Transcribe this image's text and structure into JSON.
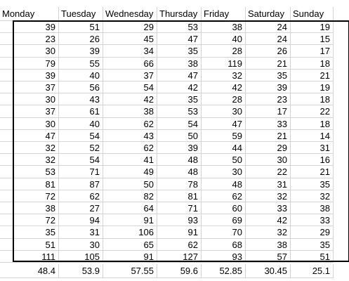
{
  "sheet": {
    "headers": [
      "Monday",
      "Tuesday",
      "Wednesday",
      "Thursday",
      "Friday",
      "Saturday",
      "Sunday"
    ],
    "rows": [
      [
        "39",
        "51",
        "29",
        "53",
        "38",
        "24",
        "19"
      ],
      [
        "23",
        "26",
        "45",
        "47",
        "40",
        "24",
        "15"
      ],
      [
        "30",
        "39",
        "34",
        "35",
        "28",
        "26",
        "17"
      ],
      [
        "79",
        "55",
        "66",
        "38",
        "119",
        "21",
        "18"
      ],
      [
        "39",
        "40",
        "37",
        "47",
        "32",
        "35",
        "21"
      ],
      [
        "37",
        "56",
        "54",
        "42",
        "42",
        "39",
        "19"
      ],
      [
        "30",
        "43",
        "42",
        "35",
        "28",
        "23",
        "18"
      ],
      [
        "37",
        "61",
        "38",
        "53",
        "30",
        "17",
        "22"
      ],
      [
        "30",
        "40",
        "62",
        "54",
        "47",
        "33",
        "18"
      ],
      [
        "47",
        "54",
        "43",
        "50",
        "59",
        "21",
        "14"
      ],
      [
        "32",
        "52",
        "62",
        "39",
        "44",
        "29",
        "31"
      ],
      [
        "32",
        "54",
        "41",
        "48",
        "50",
        "30",
        "16"
      ],
      [
        "53",
        "71",
        "49",
        "48",
        "30",
        "22",
        "21"
      ],
      [
        "81",
        "87",
        "50",
        "78",
        "48",
        "31",
        "35"
      ],
      [
        "72",
        "62",
        "82",
        "81",
        "62",
        "32",
        "32"
      ],
      [
        "38",
        "27",
        "64",
        "71",
        "60",
        "33",
        "38"
      ],
      [
        "72",
        "94",
        "91",
        "93",
        "69",
        "42",
        "33"
      ],
      [
        "35",
        "31",
        "106",
        "91",
        "70",
        "32",
        "29"
      ],
      [
        "51",
        "30",
        "65",
        "62",
        "68",
        "38",
        "35"
      ],
      [
        "111",
        "105",
        "91",
        "127",
        "93",
        "57",
        "51"
      ]
    ],
    "averages": [
      "48.4",
      "53.9",
      "57.55",
      "59.6",
      "52.85",
      "30.45",
      "25.1"
    ]
  }
}
